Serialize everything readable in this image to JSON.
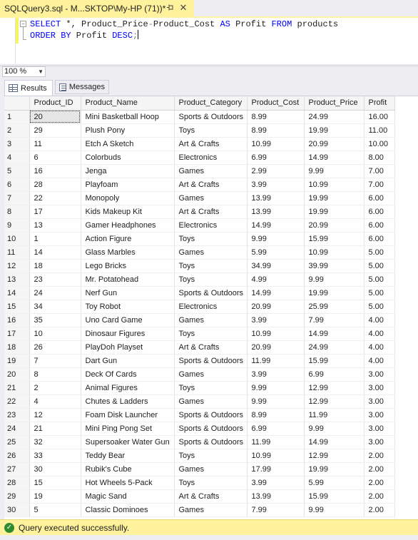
{
  "tab": {
    "title": "SQLQuery3.sql - M...SKTOP\\My-HP (71))*",
    "pin_icon": "pin-icon",
    "close_glyph": "✕"
  },
  "editor": {
    "line1": {
      "kw1": "SELECT",
      "rest1": " *, Product_Price",
      "op1": "-",
      "rest2": "Product_Cost ",
      "kw2": "AS",
      "rest3": " Profit ",
      "kw3": "FROM",
      "rest4": " products"
    },
    "line2": {
      "kw1": "ORDER BY",
      "rest1": " Profit ",
      "kw2": "DESC",
      "rest2": ";"
    }
  },
  "zoom": {
    "value": "100 %"
  },
  "result_tabs": {
    "results": "Results",
    "messages": "Messages"
  },
  "grid": {
    "columns": [
      "Product_ID",
      "Product_Name",
      "Product_Category",
      "Product_Cost",
      "Product_Price",
      "Profit"
    ],
    "rows": [
      [
        "1",
        "20",
        "Mini Basketball Hoop",
        "Sports & Outdoors",
        "8.99",
        "24.99",
        "16.00"
      ],
      [
        "2",
        "29",
        "Plush Pony",
        "Toys",
        "8.99",
        "19.99",
        "11.00"
      ],
      [
        "3",
        "11",
        "Etch A Sketch",
        "Art & Crafts",
        "10.99",
        "20.99",
        "10.00"
      ],
      [
        "4",
        "6",
        "Colorbuds",
        "Electronics",
        "6.99",
        "14.99",
        "8.00"
      ],
      [
        "5",
        "16",
        "Jenga",
        "Games",
        "2.99",
        "9.99",
        "7.00"
      ],
      [
        "6",
        "28",
        "Playfoam",
        "Art & Crafts",
        "3.99",
        "10.99",
        "7.00"
      ],
      [
        "7",
        "22",
        "Monopoly",
        "Games",
        "13.99",
        "19.99",
        "6.00"
      ],
      [
        "8",
        "17",
        "Kids Makeup Kit",
        "Art & Crafts",
        "13.99",
        "19.99",
        "6.00"
      ],
      [
        "9",
        "13",
        "Gamer Headphones",
        "Electronics",
        "14.99",
        "20.99",
        "6.00"
      ],
      [
        "10",
        "1",
        "Action Figure",
        "Toys",
        "9.99",
        "15.99",
        "6.00"
      ],
      [
        "11",
        "14",
        "Glass Marbles",
        "Games",
        "5.99",
        "10.99",
        "5.00"
      ],
      [
        "12",
        "18",
        "Lego Bricks",
        "Toys",
        "34.99",
        "39.99",
        "5.00"
      ],
      [
        "13",
        "23",
        "Mr. Potatohead",
        "Toys",
        "4.99",
        "9.99",
        "5.00"
      ],
      [
        "14",
        "24",
        "Nerf Gun",
        "Sports & Outdoors",
        "14.99",
        "19.99",
        "5.00"
      ],
      [
        "15",
        "34",
        "Toy Robot",
        "Electronics",
        "20.99",
        "25.99",
        "5.00"
      ],
      [
        "16",
        "35",
        "Uno Card Game",
        "Games",
        "3.99",
        "7.99",
        "4.00"
      ],
      [
        "17",
        "10",
        "Dinosaur Figures",
        "Toys",
        "10.99",
        "14.99",
        "4.00"
      ],
      [
        "18",
        "26",
        "PlayDoh Playset",
        "Art & Crafts",
        "20.99",
        "24.99",
        "4.00"
      ],
      [
        "19",
        "7",
        "Dart Gun",
        "Sports & Outdoors",
        "11.99",
        "15.99",
        "4.00"
      ],
      [
        "20",
        "8",
        "Deck Of Cards",
        "Games",
        "3.99",
        "6.99",
        "3.00"
      ],
      [
        "21",
        "2",
        "Animal Figures",
        "Toys",
        "9.99",
        "12.99",
        "3.00"
      ],
      [
        "22",
        "4",
        "Chutes & Ladders",
        "Games",
        "9.99",
        "12.99",
        "3.00"
      ],
      [
        "23",
        "12",
        "Foam Disk Launcher",
        "Sports & Outdoors",
        "8.99",
        "11.99",
        "3.00"
      ],
      [
        "24",
        "21",
        "Mini Ping Pong Set",
        "Sports & Outdoors",
        "6.99",
        "9.99",
        "3.00"
      ],
      [
        "25",
        "32",
        "Supersoaker Water Gun",
        "Sports & Outdoors",
        "11.99",
        "14.99",
        "3.00"
      ],
      [
        "26",
        "33",
        "Teddy Bear",
        "Toys",
        "10.99",
        "12.99",
        "2.00"
      ],
      [
        "27",
        "30",
        "Rubik's Cube",
        "Games",
        "17.99",
        "19.99",
        "2.00"
      ],
      [
        "28",
        "15",
        "Hot Wheels 5-Pack",
        "Toys",
        "3.99",
        "5.99",
        "2.00"
      ],
      [
        "29",
        "19",
        "Magic Sand",
        "Art & Crafts",
        "13.99",
        "15.99",
        "2.00"
      ],
      [
        "30",
        "5",
        "Classic Dominoes",
        "Games",
        "7.99",
        "9.99",
        "2.00"
      ]
    ]
  },
  "status": {
    "text": "Query executed successfully.",
    "icon": "check-circle-icon"
  },
  "colors": {
    "tab_active": "#fff29d",
    "status_bar": "#fff29d",
    "keyword": "#0000ff",
    "operator": "#808080"
  }
}
